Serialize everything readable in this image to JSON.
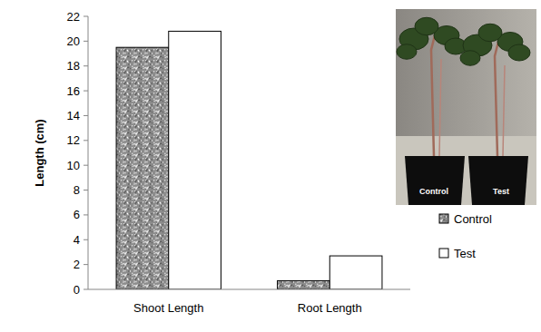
{
  "chart_data": {
    "type": "bar",
    "y_label": "Length (cm)",
    "categories": [
      "Shoot Length",
      "Root Length"
    ],
    "series": [
      {
        "name": "Control",
        "color": "#8c8c8c",
        "values": [
          19.5,
          0.7
        ]
      },
      {
        "name": "Test",
        "color": "#ffffff",
        "values": [
          20.8,
          2.7
        ]
      }
    ],
    "ylim": [
      0,
      22
    ],
    "yticks": [
      0,
      2,
      4,
      6,
      8,
      10,
      12,
      14,
      16,
      18,
      20,
      22
    ],
    "grid": false,
    "legend": "right"
  }
}
